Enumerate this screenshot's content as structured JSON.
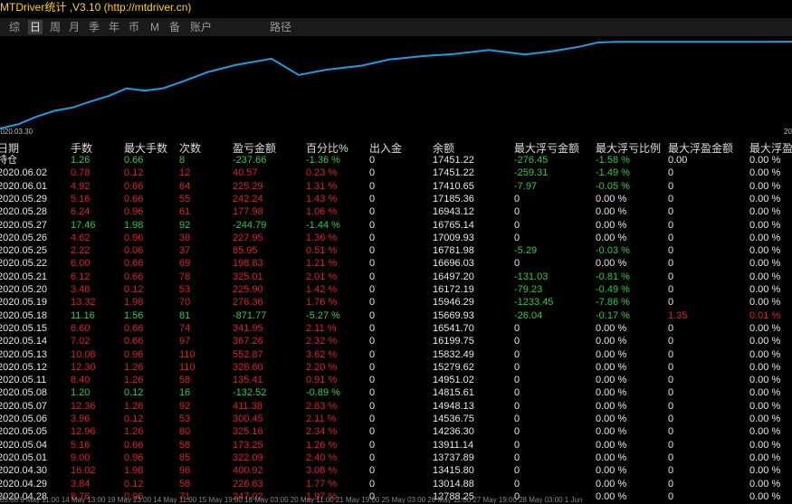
{
  "window": {
    "title": "MTDriver统计 ,V3.10 (http://mtdriver.cn)"
  },
  "toolbar": {
    "buttons": [
      {
        "label": "综",
        "active": false
      },
      {
        "label": "日",
        "active": true
      },
      {
        "label": "周",
        "active": false
      },
      {
        "label": "月",
        "active": false
      },
      {
        "label": "季",
        "active": false
      },
      {
        "label": "年",
        "active": false
      },
      {
        "label": "币",
        "active": false
      },
      {
        "label": "M",
        "active": false
      },
      {
        "label": "备",
        "active": false
      },
      {
        "label": "账户",
        "active": false
      },
      {
        "label": "路径",
        "active": false
      }
    ]
  },
  "chart": {
    "line_color": "#1e9be8",
    "x_start_label": "2020.03.30",
    "x_end_label": "2020.",
    "x_labels_visible": [
      "2020.03.30",
      "2020."
    ],
    "chart_data": {
      "type": "line",
      "y": [
        12788,
        13014,
        13415,
        13738,
        13911,
        14236,
        14537,
        14948,
        14815,
        14951,
        15280,
        15832,
        16200,
        16542,
        15669,
        15946,
        16172,
        16497,
        16696,
        16782,
        17009,
        16765,
        16943,
        17185,
        17411,
        17451,
        17451,
        17451,
        17450,
        17448,
        17452,
        17454,
        17455
      ]
    }
  },
  "table": {
    "columns": [
      "日期",
      "手数",
      "最大手数",
      "次数",
      "盈亏金额",
      "百分比%",
      "出入金",
      "余额",
      "最大浮亏金额",
      "最大浮亏比例",
      "最大浮盈金额",
      "最大浮盈"
    ],
    "rows": [
      [
        "持仓",
        "1.26",
        "0.66",
        "8",
        "-237.66",
        "-1.36 %",
        "0",
        "17451.22",
        "-276.45",
        "-1.58 %",
        "0.00",
        "0.00 %"
      ],
      [
        "2020.06.02",
        "0.78",
        "0.12",
        "12",
        "40.57",
        "0.23 %",
        "0",
        "17451.22",
        "-259.31",
        "-1.49 %",
        "0",
        "0.00 %"
      ],
      [
        "2020.06.01",
        "4.92",
        "0.66",
        "64",
        "225.29",
        "1.31 %",
        "0",
        "17410.65",
        "-7.97",
        "-0.05 %",
        "0",
        "0.00 %"
      ],
      [
        "2020.05.29",
        "5.16",
        "0.66",
        "55",
        "242.24",
        "1.43 %",
        "0",
        "17185.36",
        "0",
        "0.00 %",
        "0",
        "0.00 %"
      ],
      [
        "2020.05.28",
        "6.24",
        "0.96",
        "61",
        "177.98",
        "1.06 %",
        "0",
        "16943.12",
        "0",
        "0.00 %",
        "0",
        "0.00 %"
      ],
      [
        "2020.05.27",
        "17.46",
        "1.98",
        "92",
        "-244.79",
        "-1.44 %",
        "0",
        "16765.14",
        "0",
        "0.00 %",
        "0",
        "0.00 %"
      ],
      [
        "2020.05.26",
        "4.62",
        "0.96",
        "38",
        "227.95",
        "1.36 %",
        "0",
        "17009.93",
        "0",
        "0.00 %",
        "0",
        "0.00 %"
      ],
      [
        "2020.05.25",
        "2.22",
        "0.06",
        "37",
        "85.95",
        "0.51 %",
        "0",
        "16781.98",
        "-5.29",
        "-0.03 %",
        "0",
        "0.00 %"
      ],
      [
        "2020.05.22",
        "6.00",
        "0.66",
        "69",
        "198.83",
        "1.21 %",
        "0",
        "16696.03",
        "0",
        "0.00 %",
        "0",
        "0.00 %"
      ],
      [
        "2020.05.21",
        "6.12",
        "0.66",
        "78",
        "325.01",
        "2.01 %",
        "0",
        "16497.20",
        "-131.03",
        "-0.81 %",
        "0",
        "0.00 %"
      ],
      [
        "2020.05.20",
        "3.48",
        "0.12",
        "53",
        "225.90",
        "1.42 %",
        "0",
        "16172.19",
        "-79.23",
        "-0.49 %",
        "0",
        "0.00 %"
      ],
      [
        "2020.05.19",
        "13.32",
        "1.98",
        "70",
        "276.36",
        "1.76 %",
        "0",
        "15946.29",
        "-1233.45",
        "-7.86 %",
        "0",
        "0.00 %"
      ],
      [
        "2020.05.18",
        "11.16",
        "1.56",
        "81",
        "-871.77",
        "-5.27 %",
        "0",
        "15669.93",
        "-26.04",
        "-0.17 %",
        "1.35",
        "0.01 %"
      ],
      [
        "2020.05.15",
        "6.60",
        "0.66",
        "74",
        "341.95",
        "2.11 %",
        "0",
        "16541.70",
        "0",
        "0.00 %",
        "0",
        "0.00 %"
      ],
      [
        "2020.05.14",
        "7.02",
        "0.66",
        "97",
        "367.26",
        "2.32 %",
        "0",
        "16199.75",
        "0",
        "0.00 %",
        "0",
        "0.00 %"
      ],
      [
        "2020.05.13",
        "10.08",
        "0.96",
        "110",
        "552.87",
        "3.62 %",
        "0",
        "15832.49",
        "0",
        "0.00 %",
        "0",
        "0.00 %"
      ],
      [
        "2020.05.12",
        "12.30",
        "1.26",
        "110",
        "328.60",
        "2.20 %",
        "0",
        "15279.62",
        "0",
        "0.00 %",
        "0",
        "0.00 %"
      ],
      [
        "2020.05.11",
        "8.40",
        "1.26",
        "58",
        "135.41",
        "0.91 %",
        "0",
        "14951.02",
        "0",
        "0.00 %",
        "0",
        "0.00 %"
      ],
      [
        "2020.05.08",
        "1.20",
        "0.12",
        "16",
        "-132.52",
        "-0.89 %",
        "0",
        "14815.61",
        "0",
        "0.00 %",
        "0",
        "0.00 %"
      ],
      [
        "2020.05.07",
        "12.36",
        "1.26",
        "92",
        "411.38",
        "2.83 %",
        "0",
        "14948.13",
        "0",
        "0.00 %",
        "0",
        "0.00 %"
      ],
      [
        "2020.05.06",
        "3.96",
        "0.12",
        "53",
        "300.45",
        "2.11 %",
        "0",
        "14536.75",
        "0",
        "0.00 %",
        "0",
        "0.00 %"
      ],
      [
        "2020.05.05",
        "12.96",
        "1.26",
        "80",
        "325.16",
        "2.34 %",
        "0",
        "14236.30",
        "0",
        "0.00 %",
        "0",
        "0.00 %"
      ],
      [
        "2020.05.04",
        "5.16",
        "0.66",
        "58",
        "173.25",
        "1.26 %",
        "0",
        "13911.14",
        "0",
        "0.00 %",
        "0",
        "0.00 %"
      ],
      [
        "2020.05.01",
        "9.00",
        "0.96",
        "85",
        "322.09",
        "2.40 %",
        "0",
        "13737.89",
        "0",
        "0.00 %",
        "0",
        "0.00 %"
      ],
      [
        "2020.04.30",
        "16.02",
        "1.98",
        "96",
        "400.92",
        "3.08 %",
        "0",
        "13415.80",
        "0",
        "0.00 %",
        "0",
        "0.00 %"
      ],
      [
        "2020.04.29",
        "3.84",
        "0.12",
        "58",
        "226.63",
        "1.77 %",
        "0",
        "13014.88",
        "0",
        "0.00 %",
        "0",
        "0.00 %"
      ],
      [
        "2020.04.28",
        "8.76",
        "0.96",
        "71",
        "247.02",
        "1.97 %",
        "0",
        "12788.25",
        "0",
        "0.00 %",
        "0",
        "0.00 %"
      ]
    ]
  },
  "colors": {
    "negative": "#2ecc40",
    "positive": "#e02020",
    "neutral": "#e8e8e8",
    "title": "#ffd400"
  },
  "bottom_axis": {
    "text": "03:00  9 May  11:00  14 May  13:00  19 May  23:00  14 May  11:00  15 May  19:00  18 May  03:00  20 May  11:00  21 May  19:00  25 May  03:00  26 May  11:00  27 May  19:00  28 May  03:00  1 Jun"
  }
}
